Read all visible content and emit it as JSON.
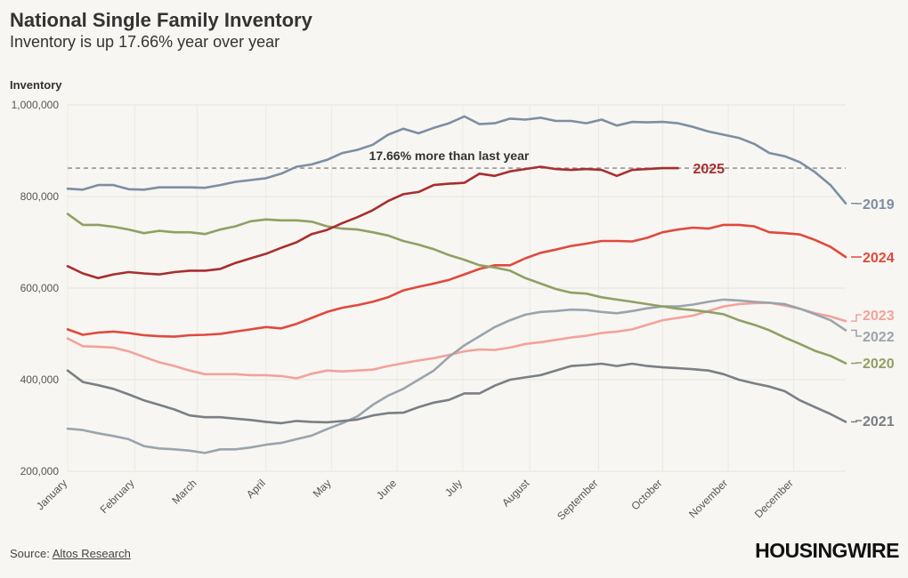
{
  "header": {
    "title": "National Single Family Inventory",
    "subtitle": "Inventory is up 17.66% year over year"
  },
  "footer": {
    "source_prefix": "Source: ",
    "source_link": "Altos Research",
    "logo_text": "HOUSINGWIRE"
  },
  "chart_data": {
    "type": "line",
    "ylabel": "Inventory",
    "ylim": [
      200000,
      1000000
    ],
    "yticks": [
      200000,
      400000,
      600000,
      800000,
      1000000
    ],
    "ytick_labels": [
      "200,000",
      "400,000",
      "600,000",
      "800,000",
      "1,000,000"
    ],
    "x_months": [
      "January",
      "February",
      "March",
      "April",
      "May",
      "June",
      "July",
      "August",
      "September",
      "October",
      "November",
      "December"
    ],
    "x_month_starts_week": [
      1,
      5.4,
      9.5,
      14,
      18.3,
      22.6,
      26.9,
      31.3,
      35.8,
      40,
      44.3,
      48.6
    ],
    "x_range_weeks": [
      1,
      52
    ],
    "reference_line": {
      "value": 862000,
      "label": "17.66% more than last year",
      "color": "#888888"
    },
    "series": [
      {
        "name": "2019",
        "color": "#7d8ea3",
        "weeks": [
          1,
          2,
          3,
          4,
          5,
          6,
          7,
          8,
          9,
          10,
          11,
          12,
          13,
          14,
          15,
          16,
          17,
          18,
          19,
          20,
          21,
          22,
          23,
          24,
          25,
          26,
          27,
          28,
          29,
          30,
          31,
          32,
          33,
          34,
          35,
          36,
          37,
          38,
          39,
          40,
          41,
          42,
          43,
          44,
          45,
          46,
          47,
          48,
          49,
          50,
          51,
          52
        ],
        "values": [
          817000,
          815000,
          825000,
          825000,
          816000,
          815000,
          820000,
          820000,
          820000,
          819000,
          825000,
          832000,
          836000,
          840000,
          850000,
          865000,
          870000,
          880000,
          895000,
          902000,
          913000,
          935000,
          948000,
          938000,
          950000,
          960000,
          975000,
          958000,
          960000,
          970000,
          968000,
          972000,
          965000,
          965000,
          960000,
          968000,
          955000,
          963000,
          962000,
          963000,
          960000,
          952000,
          942000,
          935000,
          928000,
          915000,
          895000,
          888000,
          875000,
          853000,
          825000,
          785000
        ]
      },
      {
        "name": "2024",
        "color": "#e2483c",
        "weeks": [
          1,
          2,
          3,
          4,
          5,
          6,
          7,
          8,
          9,
          10,
          11,
          12,
          13,
          14,
          15,
          16,
          17,
          18,
          19,
          20,
          21,
          22,
          23,
          24,
          25,
          26,
          27,
          28,
          29,
          30,
          31,
          32,
          33,
          34,
          35,
          36,
          37,
          38,
          39,
          40,
          41,
          42,
          43,
          44,
          45,
          46,
          47,
          48,
          49,
          50,
          51,
          52
        ],
        "values": [
          510000,
          498000,
          503000,
          505000,
          502000,
          497000,
          495000,
          494000,
          497000,
          498000,
          500000,
          505000,
          510000,
          515000,
          512000,
          522000,
          535000,
          548000,
          557000,
          563000,
          570000,
          580000,
          595000,
          603000,
          610000,
          618000,
          630000,
          642000,
          650000,
          650000,
          665000,
          677000,
          684000,
          692000,
          697000,
          703000,
          703000,
          702000,
          710000,
          722000,
          728000,
          732000,
          730000,
          738000,
          738000,
          735000,
          722000,
          720000,
          717000,
          705000,
          690000,
          668000
        ]
      },
      {
        "name": "2023",
        "color": "#f3a29c",
        "weeks": [
          1,
          2,
          3,
          4,
          5,
          6,
          7,
          8,
          9,
          10,
          11,
          12,
          13,
          14,
          15,
          16,
          17,
          18,
          19,
          20,
          21,
          22,
          23,
          24,
          25,
          26,
          27,
          28,
          29,
          30,
          31,
          32,
          33,
          34,
          35,
          36,
          37,
          38,
          39,
          40,
          41,
          42,
          43,
          44,
          45,
          46,
          47,
          48,
          49,
          50,
          51,
          52
        ],
        "values": [
          490000,
          473000,
          472000,
          470000,
          462000,
          450000,
          438000,
          430000,
          420000,
          412000,
          412000,
          412000,
          410000,
          410000,
          408000,
          403000,
          413000,
          420000,
          418000,
          420000,
          422000,
          430000,
          436000,
          442000,
          447000,
          454000,
          462000,
          466000,
          465000,
          470000,
          478000,
          482000,
          487000,
          492000,
          496000,
          502000,
          505000,
          510000,
          520000,
          530000,
          535000,
          540000,
          550000,
          560000,
          565000,
          567000,
          568000,
          562000,
          555000,
          545000,
          538000,
          528000
        ]
      },
      {
        "name": "2022",
        "color": "#9aa4ad",
        "weeks": [
          1,
          2,
          3,
          4,
          5,
          6,
          7,
          8,
          9,
          10,
          11,
          12,
          13,
          14,
          15,
          16,
          17,
          18,
          19,
          20,
          21,
          22,
          23,
          24,
          25,
          26,
          27,
          28,
          29,
          30,
          31,
          32,
          33,
          34,
          35,
          36,
          37,
          38,
          39,
          40,
          41,
          42,
          43,
          44,
          45,
          46,
          47,
          48,
          49,
          50,
          51,
          52
        ],
        "values": [
          293000,
          290000,
          283000,
          277000,
          270000,
          255000,
          250000,
          248000,
          245000,
          240000,
          248000,
          248000,
          252000,
          258000,
          262000,
          270000,
          278000,
          292000,
          305000,
          320000,
          345000,
          365000,
          380000,
          400000,
          420000,
          450000,
          475000,
          495000,
          515000,
          530000,
          542000,
          548000,
          550000,
          553000,
          552000,
          548000,
          545000,
          550000,
          556000,
          560000,
          560000,
          564000,
          570000,
          575000,
          573000,
          570000,
          568000,
          565000,
          555000,
          543000,
          530000,
          508000
        ]
      },
      {
        "name": "2020",
        "color": "#8fa063",
        "weeks": [
          1,
          2,
          3,
          4,
          5,
          6,
          7,
          8,
          9,
          10,
          11,
          12,
          13,
          14,
          15,
          16,
          17,
          18,
          19,
          20,
          21,
          22,
          23,
          24,
          25,
          26,
          27,
          28,
          29,
          30,
          31,
          32,
          33,
          34,
          35,
          36,
          37,
          38,
          39,
          40,
          41,
          42,
          43,
          44,
          45,
          46,
          47,
          48,
          49,
          50,
          51,
          52
        ],
        "values": [
          762000,
          738000,
          738000,
          734000,
          728000,
          720000,
          725000,
          722000,
          722000,
          718000,
          728000,
          735000,
          746000,
          750000,
          748000,
          748000,
          745000,
          735000,
          730000,
          728000,
          722000,
          715000,
          703000,
          695000,
          685000,
          672000,
          662000,
          650000,
          645000,
          638000,
          622000,
          610000,
          598000,
          590000,
          588000,
          580000,
          575000,
          570000,
          565000,
          560000,
          555000,
          552000,
          548000,
          543000,
          530000,
          520000,
          508000,
          492000,
          478000,
          463000,
          452000,
          436000
        ]
      },
      {
        "name": "2021",
        "color": "#7a7f85",
        "weeks": [
          1,
          2,
          3,
          4,
          5,
          6,
          7,
          8,
          9,
          10,
          11,
          12,
          13,
          14,
          15,
          16,
          17,
          18,
          19,
          20,
          21,
          22,
          23,
          24,
          25,
          26,
          27,
          28,
          29,
          30,
          31,
          32,
          33,
          34,
          35,
          36,
          37,
          38,
          39,
          40,
          41,
          42,
          43,
          44,
          45,
          46,
          47,
          48,
          49,
          50,
          51,
          52
        ],
        "values": [
          420000,
          395000,
          388000,
          380000,
          368000,
          355000,
          345000,
          335000,
          322000,
          318000,
          318000,
          315000,
          312000,
          308000,
          305000,
          310000,
          308000,
          307000,
          310000,
          313000,
          322000,
          327000,
          328000,
          340000,
          350000,
          356000,
          370000,
          370000,
          387000,
          400000,
          405000,
          410000,
          420000,
          430000,
          432000,
          435000,
          430000,
          435000,
          430000,
          427000,
          425000,
          423000,
          420000,
          412000,
          400000,
          392000,
          385000,
          375000,
          355000,
          340000,
          325000,
          308000
        ]
      },
      {
        "name": "2025",
        "color": "#a82e2e",
        "weeks": [
          1,
          2,
          3,
          4,
          5,
          6,
          7,
          8,
          9,
          10,
          11,
          12,
          13,
          14,
          15,
          16,
          17,
          18,
          19,
          20,
          21,
          22,
          23,
          24,
          25,
          26,
          27,
          28,
          29,
          30,
          31,
          32,
          33,
          34,
          35,
          36,
          37,
          38,
          39,
          40,
          41
        ],
        "values": [
          648000,
          632000,
          622000,
          630000,
          635000,
          632000,
          630000,
          635000,
          638000,
          638000,
          642000,
          655000,
          665000,
          675000,
          688000,
          700000,
          718000,
          727000,
          742000,
          755000,
          770000,
          790000,
          805000,
          810000,
          825000,
          828000,
          830000,
          850000,
          845000,
          855000,
          860000,
          865000,
          860000,
          858000,
          860000,
          858000,
          845000,
          858000,
          860000,
          862000,
          862000
        ]
      }
    ]
  }
}
